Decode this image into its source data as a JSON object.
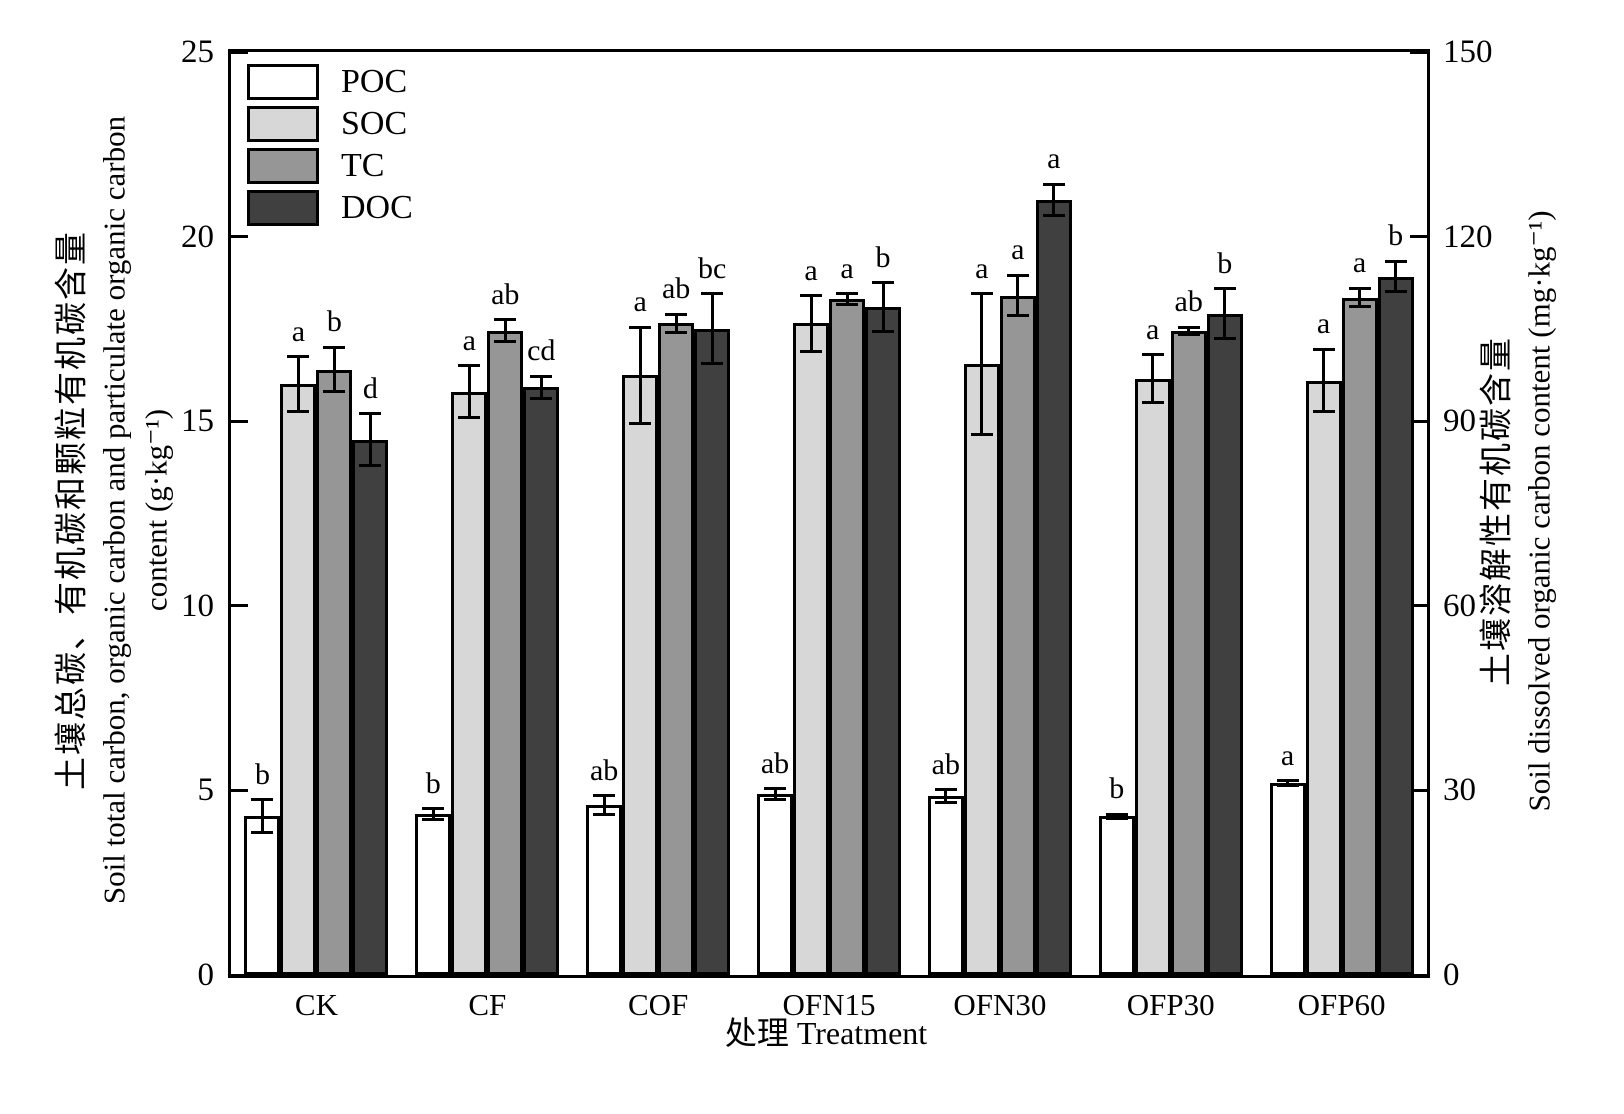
{
  "figure": {
    "x_axis_title": "处理 Treatment",
    "left_axis_title_zh": "土壤总碳、有机碳和颗粒有机碳含量",
    "left_axis_title_en1": "Soil total carbon, organic carbon and particulate organic carbon",
    "left_axis_title_en2": "content (g·kg⁻¹)",
    "right_axis_title_zh": "土壤溶解性有机碳含量",
    "right_axis_title_en": "Soil dissolved organic carbon content (mg·kg⁻¹)"
  },
  "chart_data": {
    "type": "bar",
    "title": "",
    "xlabel": "处理 Treatment",
    "categories": [
      "CK",
      "CF",
      "COF",
      "OFN15",
      "OFN30",
      "OFP30",
      "OFP60"
    ],
    "axes": {
      "left": {
        "label_zh": "土壤总碳、有机碳和颗粒有机碳含量",
        "label_en": "Soil total carbon, organic carbon and particulate organic carbon content (g·kg⁻¹)",
        "min": 0,
        "max": 25,
        "ticks": [
          0,
          5,
          10,
          15,
          20,
          25
        ]
      },
      "right": {
        "label_zh": "土壤溶解性有机碳含量",
        "label_en": "Soil dissolved organic carbon content (mg·kg⁻¹)",
        "min": 0,
        "max": 150,
        "ticks": [
          0,
          30,
          60,
          90,
          120,
          150
        ]
      }
    },
    "legend_position": "top-left",
    "grid": false,
    "series": [
      {
        "name": "POC",
        "axis": "left",
        "unit": "g·kg⁻¹",
        "color": "#ffffff",
        "values": [
          4.3,
          4.35,
          4.6,
          4.9,
          4.85,
          4.3,
          5.2
        ],
        "errors": [
          0.45,
          0.15,
          0.25,
          0.15,
          0.17,
          0.06,
          0.06
        ],
        "letters": [
          "b",
          "b",
          "ab",
          "ab",
          "ab",
          "b",
          "a"
        ]
      },
      {
        "name": "SOC",
        "axis": "left",
        "unit": "g·kg⁻¹",
        "color": "#d7d7d7",
        "values": [
          16.0,
          15.8,
          16.25,
          17.65,
          16.55,
          16.15,
          16.1
        ],
        "errors": [
          0.75,
          0.7,
          1.3,
          0.75,
          1.9,
          0.65,
          0.85
        ],
        "letters": [
          "a",
          "a",
          "a",
          "a",
          "a",
          "a",
          "a"
        ]
      },
      {
        "name": "TC",
        "axis": "left",
        "unit": "g·kg⁻¹",
        "color": "#969696",
        "values": [
          16.4,
          17.45,
          17.65,
          18.3,
          18.4,
          17.45,
          18.35
        ],
        "errors": [
          0.6,
          0.3,
          0.25,
          0.15,
          0.55,
          0.1,
          0.25
        ],
        "letters": [
          "b",
          "ab",
          "ab",
          "a",
          "a",
          "ab",
          "a"
        ]
      },
      {
        "name": "DOC",
        "axis": "right",
        "unit": "mg·kg⁻¹",
        "color": "#404040",
        "values": [
          87,
          95.5,
          105,
          108.5,
          126,
          107.5,
          113.5
        ],
        "errors": [
          4.2,
          1.8,
          5.7,
          4.0,
          2.5,
          4.0,
          2.5
        ],
        "letters": [
          "d",
          "cd",
          "bc",
          "b",
          "a",
          "b",
          "b"
        ]
      }
    ]
  }
}
